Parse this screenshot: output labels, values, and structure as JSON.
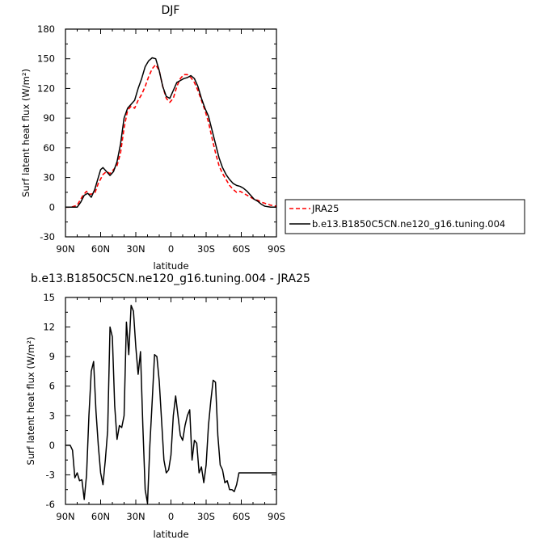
{
  "chart_data": [
    {
      "type": "line",
      "title": "DJF",
      "xlabel": "latitude",
      "ylabel": "Surf latent heat flux (W/m²)",
      "xlim": [
        90,
        -90
      ],
      "ylim": [
        -30,
        180
      ],
      "xticks": [
        90,
        60,
        30,
        0,
        -30,
        -60,
        -90
      ],
      "xtick_labels": [
        "90N",
        "60N",
        "30N",
        "0",
        "30S",
        "60S",
        "90S"
      ],
      "yticks": [
        -30,
        0,
        30,
        60,
        90,
        120,
        150,
        180
      ],
      "legend": {
        "placement": "right",
        "entries": [
          "JRA25",
          "b.e13.B1850C5CN.ne120_g16.tuning.004"
        ]
      },
      "series": [
        {
          "name": "JRA25",
          "color": "#ff0000",
          "dash": "dashed",
          "x": [
            90,
            85,
            80,
            75,
            72,
            69,
            65,
            62,
            58,
            55,
            52,
            49,
            46,
            43,
            40,
            37,
            34,
            31,
            28,
            25,
            22,
            19,
            16,
            13,
            10,
            7,
            4,
            1,
            -2,
            -5,
            -8,
            -11,
            -14,
            -17,
            -20,
            -23,
            -26,
            -29,
            -32,
            -35,
            -38,
            -41,
            -44,
            -47,
            -50,
            -53,
            -56,
            -59,
            -62,
            -65,
            -68,
            -71,
            -74,
            -77,
            -80,
            -85,
            -90
          ],
          "y": [
            0,
            0,
            2,
            12,
            16,
            13,
            14,
            24,
            33,
            36,
            34,
            38,
            42,
            55,
            80,
            98,
            102,
            100,
            108,
            114,
            122,
            132,
            140,
            144,
            138,
            122,
            110,
            106,
            110,
            122,
            130,
            134,
            134,
            131,
            126,
            118,
            108,
            98,
            86,
            70,
            55,
            42,
            34,
            28,
            22,
            18,
            15,
            16,
            14,
            12,
            10,
            8,
            7,
            5,
            4,
            2,
            1
          ]
        },
        {
          "name": "b.e13.B1850C5CN.ne120_g16.tuning.004",
          "color": "#000000",
          "dash": "solid",
          "x": [
            90,
            85,
            80,
            77,
            74,
            71,
            68,
            65,
            62,
            60,
            58,
            55,
            52,
            49,
            46,
            43,
            40,
            37,
            34,
            31,
            28,
            25,
            22,
            19,
            16,
            13,
            10,
            7,
            4,
            1,
            -2,
            -5,
            -8,
            -11,
            -14,
            -17,
            -20,
            -23,
            -26,
            -29,
            -32,
            -35,
            -38,
            -41,
            -44,
            -47,
            -50,
            -53,
            -56,
            -59,
            -62,
            -65,
            -68,
            -71,
            -74,
            -77,
            -80,
            -85,
            -90
          ],
          "y": [
            0,
            0,
            0,
            5,
            12,
            14,
            10,
            18,
            30,
            38,
            40,
            36,
            32,
            36,
            46,
            64,
            90,
            100,
            104,
            108,
            120,
            130,
            142,
            148,
            151,
            150,
            138,
            122,
            112,
            110,
            118,
            126,
            128,
            130,
            131,
            133,
            130,
            122,
            110,
            100,
            92,
            78,
            64,
            50,
            40,
            33,
            28,
            24,
            22,
            21,
            19,
            16,
            12,
            8,
            6,
            3,
            1,
            0,
            0
          ]
        }
      ]
    },
    {
      "type": "line",
      "title": "b.e13.B1850C5CN.ne120_g16.tuning.004 - JRA25",
      "xlabel": "latitude",
      "ylabel": "Surf latent heat flux (W/m²)",
      "xlim": [
        90,
        -90
      ],
      "ylim": [
        -6,
        15
      ],
      "xticks": [
        90,
        60,
        30,
        0,
        -30,
        -60,
        -90
      ],
      "xtick_labels": [
        "90N",
        "60N",
        "30N",
        "0",
        "30S",
        "60S",
        "90S"
      ],
      "yticks": [
        -6,
        -3,
        0,
        3,
        6,
        9,
        12,
        15
      ],
      "series": [
        {
          "color": "#000000",
          "dash": "solid",
          "x": [
            90,
            86,
            84,
            82,
            80,
            78,
            76,
            74,
            72,
            70,
            68,
            66,
            64,
            62,
            60,
            58,
            56,
            54,
            52,
            50,
            48,
            46,
            44,
            42,
            40,
            38,
            36,
            34,
            32,
            30,
            28,
            26,
            24,
            22,
            20,
            18,
            16,
            14,
            12,
            10,
            8,
            6,
            4,
            2,
            0,
            -2,
            -4,
            -6,
            -8,
            -10,
            -12,
            -14,
            -16,
            -18,
            -20,
            -22,
            -24,
            -26,
            -28,
            -30,
            -32,
            -34,
            -36,
            -38,
            -40,
            -42,
            -44,
            -46,
            -48,
            -50,
            -52,
            -54,
            -56,
            -58,
            -60,
            -62,
            -64,
            -66,
            -68,
            -70,
            -72,
            -74,
            -76,
            -78,
            -80,
            -82,
            -84,
            -86,
            -88,
            -90
          ],
          "y": [
            0,
            0,
            -0.5,
            -3.3,
            -2.8,
            -3.6,
            -3.5,
            -5.5,
            -3,
            3,
            7.5,
            8.5,
            3.5,
            0,
            -2.8,
            -4,
            -1.5,
            1.5,
            12,
            11,
            4,
            0.6,
            2,
            1.8,
            3,
            12.5,
            9.2,
            14.2,
            13.6,
            10,
            7.2,
            9.5,
            2,
            -4.5,
            -5.9,
            0,
            4.5,
            9.2,
            9,
            6.5,
            2.5,
            -1.5,
            -2.8,
            -2.5,
            -1,
            3,
            5,
            3,
            1,
            0.5,
            2,
            3,
            3.6,
            -1.5,
            0.5,
            0.2,
            -2.8,
            -2.2,
            -3.8,
            -2,
            2,
            4.5,
            6.6,
            6.4,
            1,
            -2,
            -2.5,
            -3.8,
            -3.6,
            -4.5,
            -4.5,
            -4.7,
            -4,
            -2.8,
            -2.8,
            -2.8,
            -2.8,
            -2.8,
            -2.8,
            -2.8,
            -2.8,
            -2.8,
            -2.8,
            -2.8,
            -2.8,
            -2.8,
            -2.8,
            -2.8,
            -2.8,
            -2.8
          ]
        }
      ]
    }
  ]
}
